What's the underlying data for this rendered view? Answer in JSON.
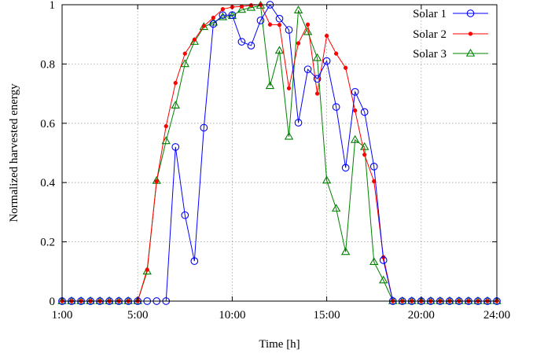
{
  "chart_data": {
    "type": "line",
    "xlabel": "Time [h]",
    "ylabel": "Normalized harvested energy",
    "xlim": [
      1,
      24
    ],
    "ylim": [
      0,
      1
    ],
    "x_ticks": [
      {
        "value": 1,
        "label": "1:00"
      },
      {
        "value": 5,
        "label": "5:00"
      },
      {
        "value": 10,
        "label": "10:00"
      },
      {
        "value": 15,
        "label": "15:00"
      },
      {
        "value": 20,
        "label": "20:00"
      },
      {
        "value": 24,
        "label": "24:00"
      }
    ],
    "y_ticks": [
      {
        "value": 0,
        "label": "0"
      },
      {
        "value": 0.2,
        "label": "0.2"
      },
      {
        "value": 0.4,
        "label": "0.4"
      },
      {
        "value": 0.6,
        "label": "0.6"
      },
      {
        "value": 0.8,
        "label": "0.8"
      },
      {
        "value": 1,
        "label": "1"
      }
    ],
    "grid": true,
    "legend_position": "top-right",
    "x": [
      1,
      1.5,
      2,
      2.5,
      3,
      3.5,
      4,
      4.5,
      5,
      5.5,
      6,
      6.5,
      7,
      7.5,
      8,
      8.5,
      9,
      9.5,
      10,
      10.5,
      11,
      11.5,
      12,
      12.5,
      13,
      13.5,
      14,
      14.5,
      15,
      15.5,
      16,
      16.5,
      17,
      17.5,
      18,
      18.5,
      19,
      19.5,
      20,
      20.5,
      21,
      21.5,
      22,
      22.5,
      23,
      23.5,
      24
    ],
    "series": [
      {
        "name": "Solar 1",
        "color": "#0000ff",
        "marker": "circle",
        "values": [
          0,
          0,
          0,
          0,
          0,
          0,
          0,
          0,
          0,
          0,
          0,
          0,
          0.52,
          0.29,
          0.135,
          0.585,
          0.935,
          0.965,
          0.965,
          0.875,
          0.862,
          0.947,
          1.0,
          0.953,
          0.915,
          0.602,
          0.782,
          0.75,
          0.81,
          0.655,
          0.45,
          0.706,
          0.638,
          0.454,
          0.138,
          0,
          0,
          0,
          0,
          0,
          0,
          0,
          0,
          0,
          0,
          0,
          0
        ]
      },
      {
        "name": "Solar 2",
        "color": "#ff0000",
        "marker": "dot",
        "values": [
          0,
          0,
          0,
          0,
          0,
          0,
          0,
          0,
          0,
          0.106,
          0.404,
          0.59,
          0.736,
          0.835,
          0.882,
          0.928,
          0.956,
          0.985,
          0.992,
          0.994,
          0.998,
          1.0,
          0.933,
          0.932,
          0.718,
          0.87,
          0.933,
          0.7,
          0.895,
          0.835,
          0.787,
          0.643,
          0.494,
          0.404,
          0.148,
          0,
          0,
          0,
          0,
          0,
          0,
          0,
          0,
          0,
          0,
          0,
          0
        ]
      },
      {
        "name": "Solar 3",
        "color": "#008000",
        "marker": "triangle",
        "values": [
          0,
          0,
          0,
          0,
          0,
          0,
          0,
          0,
          0,
          0.1,
          0.406,
          0.54,
          0.66,
          0.8,
          0.875,
          0.925,
          0.94,
          0.958,
          0.962,
          0.983,
          0.99,
          0.997,
          0.726,
          0.845,
          0.555,
          0.981,
          0.908,
          0.82,
          0.407,
          0.312,
          0.166,
          0.544,
          0.52,
          0.132,
          0.07,
          0,
          0,
          0,
          0,
          0,
          0,
          0,
          0,
          0,
          0,
          0,
          0
        ]
      }
    ]
  }
}
